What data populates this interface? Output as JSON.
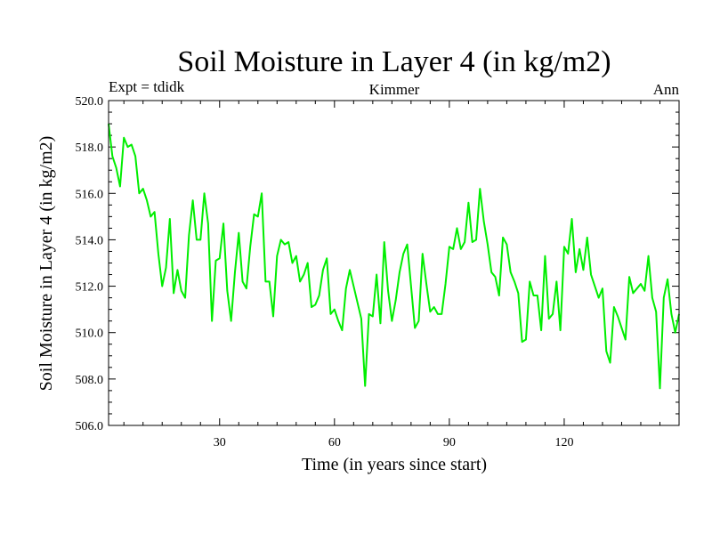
{
  "chart_data": {
    "type": "line",
    "title": "Soil Moisture in Layer 4 (in kg/m2)",
    "subtitle_left": "Expt = tdidk",
    "subtitle_center": "Kimmer",
    "subtitle_right": "Ann",
    "xlabel": "Time (in years since start)",
    "ylabel": "Soil Moisture in Layer 4 (in kg/m2)",
    "xlim": [
      1,
      150
    ],
    "ylim": [
      506.0,
      520.0
    ],
    "x_ticks": [
      30,
      60,
      90,
      120
    ],
    "x_tick_labels": [
      "30",
      "60",
      "90",
      "120"
    ],
    "y_ticks": [
      506,
      508,
      510,
      512,
      514,
      516,
      518,
      520
    ],
    "y_tick_labels": [
      "506.0",
      "508.0",
      "510.0",
      "512.0",
      "514.0",
      "516.0",
      "518.0",
      "520.0"
    ],
    "line_color": "#00ee00",
    "series": [
      {
        "name": "Soil Moisture Layer 4",
        "x_start": 1,
        "x_step": 1,
        "values": [
          519.0,
          517.6,
          517.1,
          516.3,
          518.4,
          518.0,
          518.1,
          517.6,
          516.0,
          516.2,
          515.7,
          515.0,
          515.2,
          513.4,
          512.0,
          512.8,
          514.9,
          511.7,
          512.7,
          511.8,
          511.5,
          514.2,
          515.7,
          514.0,
          514.0,
          516.0,
          514.7,
          510.5,
          513.1,
          513.2,
          514.7,
          511.8,
          510.5,
          512.6,
          514.3,
          512.2,
          511.9,
          513.7,
          515.1,
          515.0,
          516.0,
          512.2,
          512.2,
          510.7,
          513.3,
          514.0,
          513.8,
          513.9,
          513.0,
          513.3,
          512.2,
          512.5,
          513.0,
          511.1,
          511.2,
          511.6,
          512.7,
          513.2,
          510.8,
          511.0,
          510.5,
          510.1,
          511.9,
          512.7,
          512.0,
          511.3,
          510.6,
          507.7,
          510.8,
          510.7,
          512.5,
          510.4,
          513.9,
          511.8,
          510.5,
          511.4,
          512.6,
          513.4,
          513.8,
          512.0,
          510.2,
          510.5,
          513.4,
          512.1,
          510.9,
          511.1,
          510.8,
          510.8,
          512.1,
          513.7,
          513.6,
          514.5,
          513.6,
          513.9,
          515.6,
          513.9,
          514.0,
          516.2,
          514.8,
          513.8,
          512.6,
          512.4,
          511.6,
          514.1,
          513.8,
          512.6,
          512.2,
          511.7,
          509.6,
          509.7,
          512.2,
          511.6,
          511.6,
          510.1,
          513.3,
          510.6,
          510.8,
          512.2,
          510.1,
          513.7,
          513.4,
          514.9,
          512.6,
          513.6,
          512.7,
          514.1,
          512.5,
          512.0,
          511.5,
          511.9,
          509.2,
          508.7,
          511.1,
          510.7,
          510.2,
          509.7,
          512.4,
          511.7,
          511.9,
          512.1,
          511.8,
          513.3,
          511.5,
          510.9,
          507.6,
          511.5,
          512.3,
          510.8,
          510.0,
          510.8
        ]
      }
    ]
  }
}
